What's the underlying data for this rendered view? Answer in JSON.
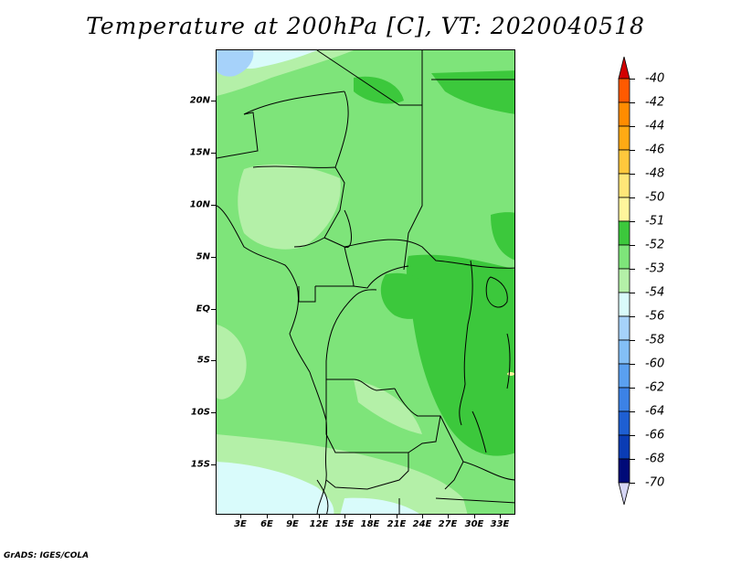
{
  "title": "Temperature at 200hPa [C], VT: 2020040518",
  "footer": "GrADS: IGES/COLA",
  "map": {
    "region": "Central Africa",
    "lat_labels": [
      "20N",
      "15N",
      "10N",
      "5N",
      "EQ",
      "5S",
      "10S",
      "15S"
    ],
    "lon_labels": [
      "3E",
      "6E",
      "9E",
      "12E",
      "15E",
      "18E",
      "21E",
      "24E",
      "27E",
      "30E",
      "33E"
    ],
    "colors": {
      "c_neg53": "#7ee47a",
      "c_neg52": "#3cc83c",
      "c_neg54": "#b4f0a8",
      "c_neg56": "#d9fbfb",
      "c_neg58": "#a6d2fa",
      "c_neg60": "#83bff6",
      "c_neg50": "#fff59c",
      "borders": "#000000"
    }
  },
  "colorbar": {
    "labels": [
      "-40",
      "-42",
      "-44",
      "-46",
      "-48",
      "-50",
      "-51",
      "-52",
      "-53",
      "-54",
      "-56",
      "-58",
      "-60",
      "-62",
      "-64",
      "-66",
      "-68",
      "-70"
    ],
    "colors": [
      "#ff1e00",
      "#ff5a00",
      "#ff8c00",
      "#ffaa14",
      "#ffc83c",
      "#ffe678",
      "#fff59c",
      "#3cc83c",
      "#7ee47a",
      "#b4f0a8",
      "#d9fbfb",
      "#a6d2fa",
      "#83bff6",
      "#5aa0f0",
      "#3c82e6",
      "#1e5fd2",
      "#0a3cb4",
      "#000a78"
    ],
    "top_arrow_color": "#d20000",
    "bottom_arrow_color": "#d6d6f5"
  }
}
